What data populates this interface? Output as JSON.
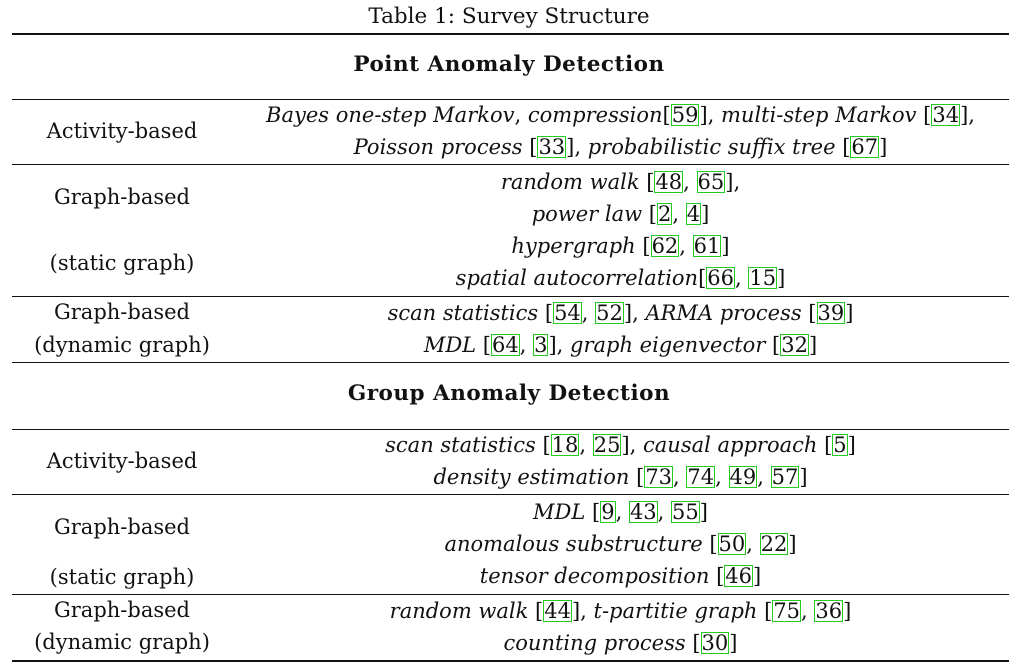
{
  "caption": "Table 1: Survey Structure",
  "sections": [
    {
      "title": "Point Anomaly Detection",
      "rows": [
        {
          "label_lines": [
            "Activity-based"
          ],
          "content_lines": [
            [
              {
                "t": "Bayes one-step Markov",
                "i": true
              },
              {
                "t": ", "
              },
              {
                "t": "compression",
                "i": true
              },
              {
                "t": "["
              },
              {
                "c": "59"
              },
              {
                "t": "], "
              },
              {
                "t": "multi-step Markov",
                "i": true
              },
              {
                "t": " ["
              },
              {
                "c": "34"
              },
              {
                "t": "],"
              }
            ],
            [
              {
                "t": "Poisson process",
                "i": true
              },
              {
                "t": " ["
              },
              {
                "c": "33"
              },
              {
                "t": "], "
              },
              {
                "t": "probabilistic suffix tree",
                "i": true
              },
              {
                "t": " ["
              },
              {
                "c": "67"
              },
              {
                "t": "]"
              }
            ]
          ]
        },
        {
          "label_lines": [
            "Graph-based",
            "(static graph)"
          ],
          "content_lines": [
            [
              {
                "t": "random walk",
                "i": true
              },
              {
                "t": " ["
              },
              {
                "c": "48"
              },
              {
                "t": ", "
              },
              {
                "c": "65"
              },
              {
                "t": "],"
              }
            ],
            [
              {
                "t": "power law",
                "i": true
              },
              {
                "t": " ["
              },
              {
                "c": "2"
              },
              {
                "t": ", "
              },
              {
                "c": "4"
              },
              {
                "t": "]"
              }
            ],
            [
              {
                "t": "hypergraph",
                "i": true
              },
              {
                "t": " ["
              },
              {
                "c": "62"
              },
              {
                "t": ", "
              },
              {
                "c": "61"
              },
              {
                "t": "]"
              }
            ],
            [
              {
                "t": "spatial autocorrelation",
                "i": true
              },
              {
                "t": "["
              },
              {
                "c": "66"
              },
              {
                "t": ", "
              },
              {
                "c": "15"
              },
              {
                "t": "]"
              }
            ]
          ]
        },
        {
          "label_lines": [
            "Graph-based",
            "(dynamic graph)"
          ],
          "content_lines": [
            [
              {
                "t": "scan statistics",
                "i": true
              },
              {
                "t": " ["
              },
              {
                "c": "54"
              },
              {
                "t": ", "
              },
              {
                "c": "52"
              },
              {
                "t": "], "
              },
              {
                "t": "ARMA process",
                "i": true
              },
              {
                "t": " ["
              },
              {
                "c": "39"
              },
              {
                "t": "]"
              }
            ],
            [
              {
                "t": "MDL",
                "i": true
              },
              {
                "t": " ["
              },
              {
                "c": "64"
              },
              {
                "t": ", "
              },
              {
                "c": "3"
              },
              {
                "t": "], "
              },
              {
                "t": "graph eigenvector",
                "i": true
              },
              {
                "t": " ["
              },
              {
                "c": "32"
              },
              {
                "t": "]"
              }
            ]
          ]
        }
      ]
    },
    {
      "title": "Group Anomaly Detection",
      "rows": [
        {
          "label_lines": [
            "Activity-based"
          ],
          "content_lines": [
            [
              {
                "t": "scan statistics",
                "i": true
              },
              {
                "t": " ["
              },
              {
                "c": "18"
              },
              {
                "t": ", "
              },
              {
                "c": "25"
              },
              {
                "t": "], "
              },
              {
                "t": "causal approach",
                "i": true
              },
              {
                "t": " ["
              },
              {
                "c": "5"
              },
              {
                "t": "]"
              }
            ],
            [
              {
                "t": "density estimation",
                "i": true
              },
              {
                "t": " ["
              },
              {
                "c": "73"
              },
              {
                "t": ", "
              },
              {
                "c": "74"
              },
              {
                "t": ", "
              },
              {
                "c": "49"
              },
              {
                "t": ", "
              },
              {
                "c": "57"
              },
              {
                "t": "]"
              }
            ]
          ]
        },
        {
          "label_lines": [
            "Graph-based",
            "(static graph)"
          ],
          "content_lines": [
            [
              {
                "t": "MDL",
                "i": true
              },
              {
                "t": " ["
              },
              {
                "c": "9"
              },
              {
                "t": ", "
              },
              {
                "c": "43"
              },
              {
                "t": ", "
              },
              {
                "c": "55"
              },
              {
                "t": "]"
              }
            ],
            [
              {
                "t": "anomalous substructure",
                "i": true
              },
              {
                "t": " ["
              },
              {
                "c": "50"
              },
              {
                "t": ", "
              },
              {
                "c": "22"
              },
              {
                "t": "]"
              }
            ],
            [
              {
                "t": "tensor decomposition",
                "i": true
              },
              {
                "t": " ["
              },
              {
                "c": "46"
              },
              {
                "t": "]"
              }
            ]
          ]
        },
        {
          "label_lines": [
            "Graph-based",
            "(dynamic graph)"
          ],
          "content_lines": [
            [
              {
                "t": "random walk",
                "i": true
              },
              {
                "t": " ["
              },
              {
                "c": "44"
              },
              {
                "t": "], "
              },
              {
                "t": "t-partitie graph",
                "i": true
              },
              {
                "t": " ["
              },
              {
                "c": "75"
              },
              {
                "t": ", "
              },
              {
                "c": "36"
              },
              {
                "t": "]"
              }
            ],
            [
              {
                "t": "counting process",
                "i": true
              },
              {
                "t": " ["
              },
              {
                "c": "30"
              },
              {
                "t": "]"
              }
            ]
          ]
        }
      ]
    }
  ],
  "colors": {
    "citation_box": "#22cc22",
    "text": "#111111",
    "rule": "#111111"
  }
}
